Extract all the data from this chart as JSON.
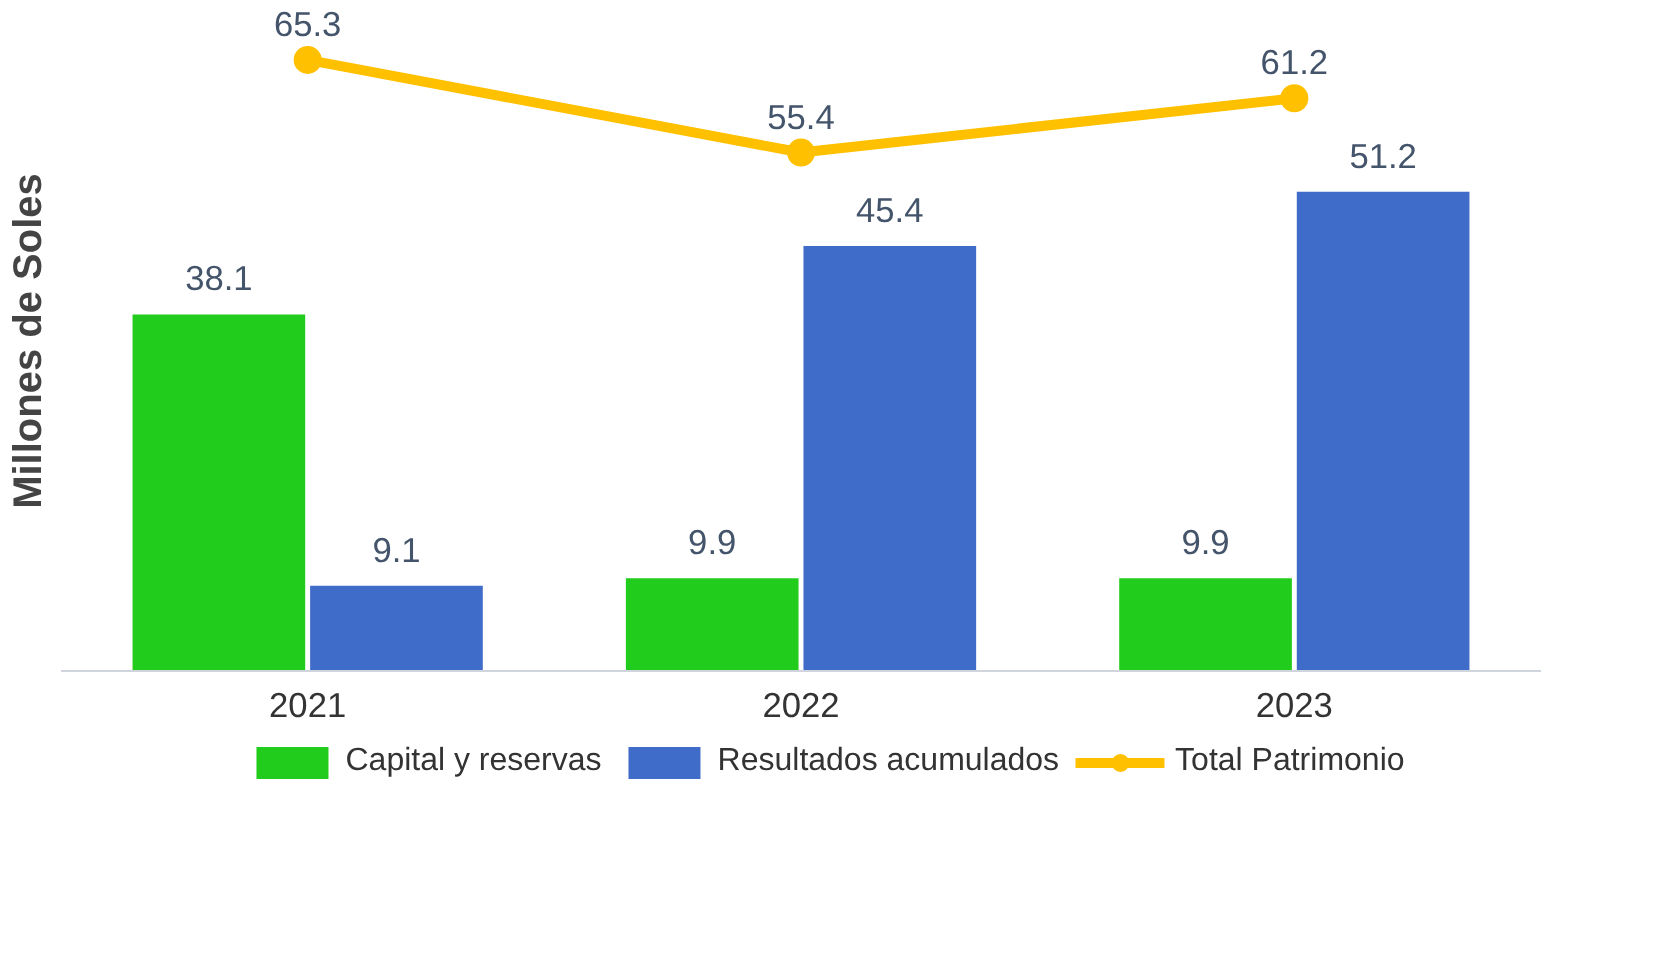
{
  "chart_data": {
    "type": "bar",
    "ylabel": "Millones de Soles",
    "categories": [
      "2021",
      "2022",
      "2023"
    ],
    "series": [
      {
        "name": "Capital y reservas",
        "color": "#22cc1c",
        "values": [
          38.1,
          9.9,
          9.9
        ]
      },
      {
        "name": "Resultados acumulados",
        "color": "#3f6cc8",
        "values": [
          9.1,
          45.4,
          51.2
        ]
      },
      {
        "name": "Total Patrimonio",
        "type": "line",
        "color": "#ffc000",
        "marker": "circle",
        "values": [
          65.3,
          55.4,
          61.2
        ]
      }
    ],
    "data_labels": true,
    "legend": "bottom"
  }
}
